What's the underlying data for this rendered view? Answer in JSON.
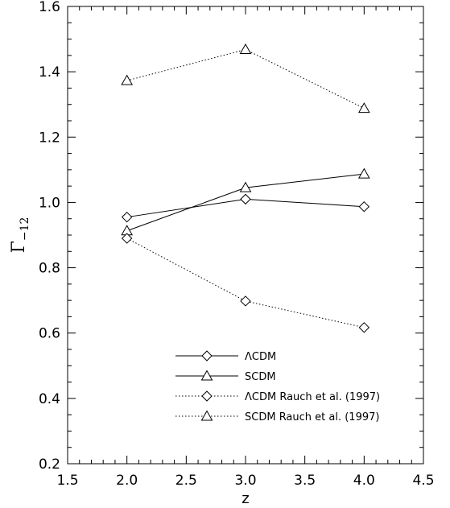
{
  "chart_data": {
    "type": "line",
    "title": "",
    "xlabel": "z",
    "ylabel_main": "Γ",
    "ylabel_sub": "−12",
    "xlim": [
      1.5,
      4.5
    ],
    "ylim": [
      0.2,
      1.6
    ],
    "xticks": [
      1.5,
      2.0,
      2.5,
      3.0,
      3.5,
      4.0,
      4.5
    ],
    "xtick_labels": [
      "1.5",
      "2.0",
      "2.5",
      "3.0",
      "3.5",
      "4.0",
      "4.5"
    ],
    "yticks": [
      0.2,
      0.4,
      0.6,
      0.8,
      1.0,
      1.2,
      1.4,
      1.6
    ],
    "ytick_labels": [
      "0.2",
      "0.4",
      "0.6",
      "0.8",
      "1.0",
      "1.2",
      "1.4",
      "1.6"
    ],
    "grid": false,
    "legend_position": "bottom-center",
    "x": [
      2.0,
      3.0,
      4.0
    ],
    "series": [
      {
        "name": "ΛCDM",
        "marker": "diamond",
        "line": "solid",
        "values": [
          0.955,
          1.01,
          0.987
        ]
      },
      {
        "name": "SCDM",
        "marker": "triangle",
        "line": "solid",
        "values": [
          0.913,
          1.045,
          1.087
        ]
      },
      {
        "name": "ΛCDM Rauch et al. (1997)",
        "marker": "diamond",
        "line": "dotted",
        "values": [
          0.89,
          0.698,
          0.617
        ]
      },
      {
        "name": "SCDM Rauch et al. (1997)",
        "marker": "triangle",
        "line": "dotted",
        "values": [
          1.373,
          1.468,
          1.288
        ]
      }
    ]
  }
}
